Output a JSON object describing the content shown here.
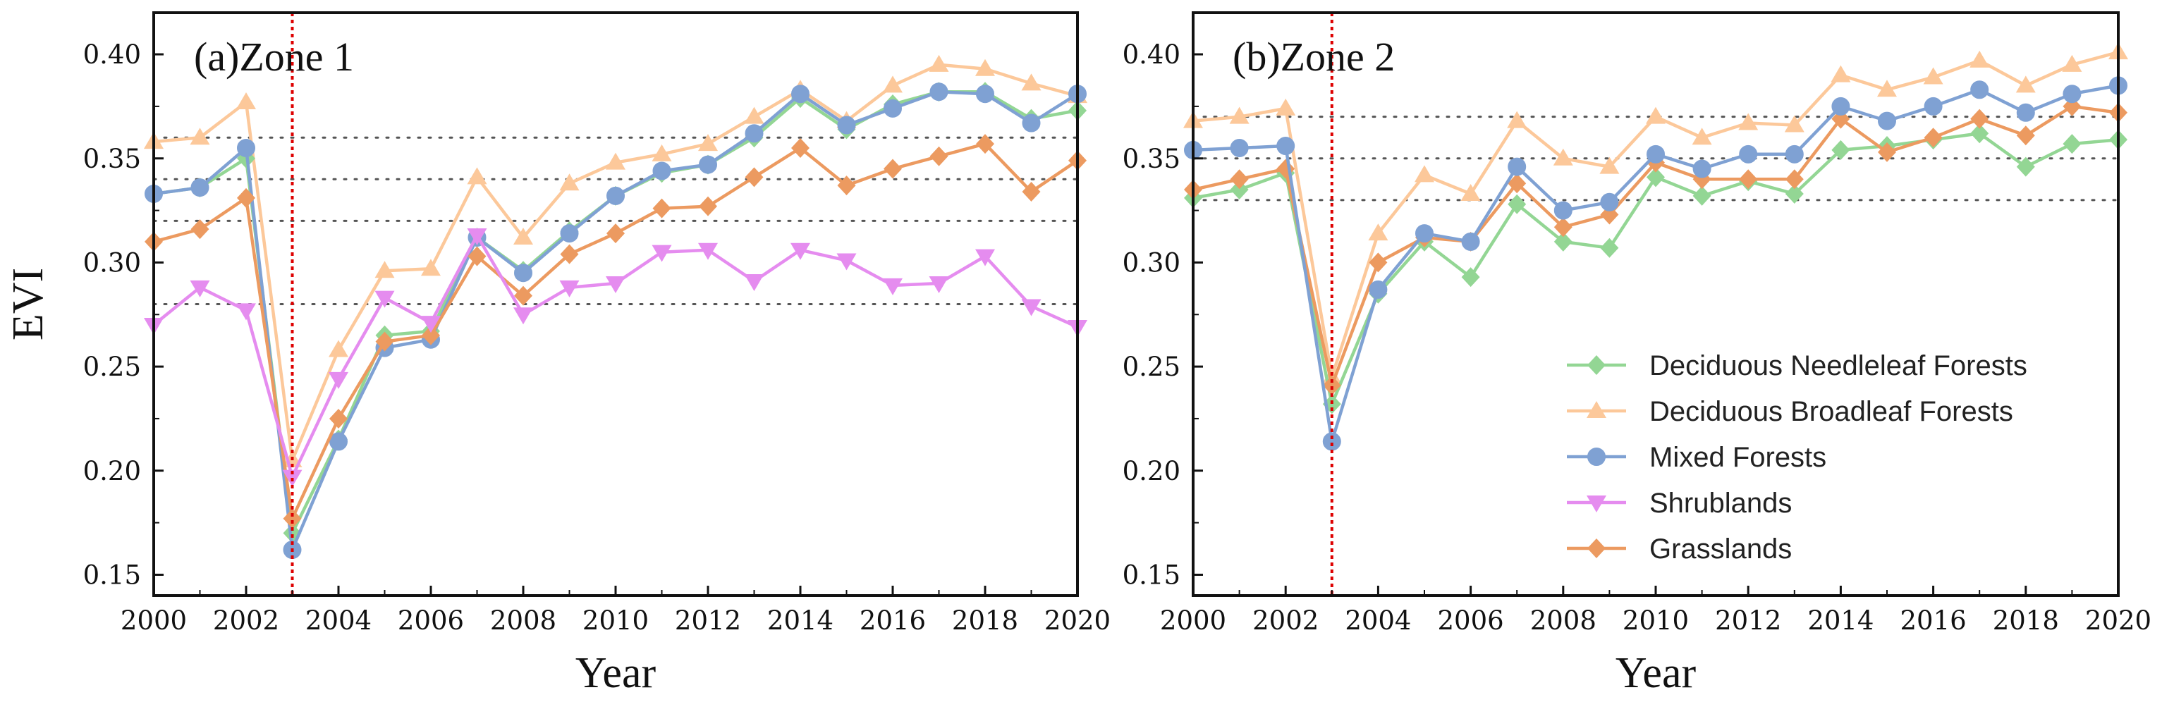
{
  "chart_data": [
    {
      "type": "line",
      "title": "(a)Zone 1",
      "xlabel": "Year",
      "ylabel": "EVI",
      "x": [
        2000,
        2001,
        2002,
        2003,
        2004,
        2005,
        2006,
        2007,
        2008,
        2009,
        2010,
        2011,
        2012,
        2013,
        2014,
        2015,
        2016,
        2017,
        2018,
        2019,
        2020
      ],
      "xticks": [
        "2000",
        "2002",
        "2004",
        "2006",
        "2008",
        "2010",
        "2012",
        "2014",
        "2016",
        "2018",
        "2020"
      ],
      "yticks": [
        "0.15",
        "0.20",
        "0.25",
        "0.30",
        "0.35",
        "0.40"
      ],
      "xlim": [
        2000,
        2020
      ],
      "ylim": [
        0.14,
        0.42
      ],
      "reference_lines_y": [
        0.36,
        0.34,
        0.32,
        0.28
      ],
      "event_line_x": 2003,
      "series": [
        {
          "name": "Deciduous Broadleaf Forests",
          "values": [
            0.358,
            0.36,
            0.377,
            0.205,
            0.258,
            0.296,
            0.297,
            0.341,
            0.312,
            0.338,
            0.348,
            0.352,
            0.357,
            0.37,
            0.383,
            0.368,
            0.385,
            0.395,
            0.393,
            0.386,
            0.38
          ]
        },
        {
          "name": "Deciduous Needleleaf Forests",
          "values": [
            0.333,
            0.336,
            0.35,
            0.17,
            0.215,
            0.265,
            0.267,
            0.312,
            0.296,
            0.315,
            0.332,
            0.343,
            0.347,
            0.36,
            0.379,
            0.364,
            0.376,
            0.382,
            0.382,
            0.369,
            0.373
          ]
        },
        {
          "name": "Mixed Forests",
          "values": [
            0.333,
            0.336,
            0.355,
            0.162,
            0.214,
            0.259,
            0.263,
            0.312,
            0.295,
            0.314,
            0.332,
            0.344,
            0.347,
            0.362,
            0.381,
            0.366,
            0.374,
            0.382,
            0.381,
            0.367,
            0.381
          ]
        },
        {
          "name": "Grasslands",
          "values": [
            0.31,
            0.316,
            0.331,
            0.177,
            0.225,
            0.262,
            0.265,
            0.303,
            0.284,
            0.304,
            0.314,
            0.326,
            0.327,
            0.341,
            0.355,
            0.337,
            0.345,
            0.351,
            0.357,
            0.334,
            0.349
          ]
        },
        {
          "name": "Shrublands",
          "values": [
            0.27,
            0.288,
            0.277,
            0.197,
            0.244,
            0.283,
            0.271,
            0.313,
            0.275,
            0.288,
            0.29,
            0.305,
            0.306,
            0.291,
            0.306,
            0.301,
            0.289,
            0.29,
            0.303,
            0.279,
            0.269
          ]
        }
      ]
    },
    {
      "type": "line",
      "title": "(b)Zone 2",
      "xlabel": "Year",
      "ylabel": "",
      "x": [
        2000,
        2001,
        2002,
        2003,
        2004,
        2005,
        2006,
        2007,
        2008,
        2009,
        2010,
        2011,
        2012,
        2013,
        2014,
        2015,
        2016,
        2017,
        2018,
        2019,
        2020
      ],
      "xticks": [
        "2000",
        "2002",
        "2004",
        "2006",
        "2008",
        "2010",
        "2012",
        "2014",
        "2016",
        "2018",
        "2020"
      ],
      "yticks": [
        "0.15",
        "0.20",
        "0.25",
        "0.30",
        "0.35",
        "0.40"
      ],
      "xlim": [
        2000,
        2020
      ],
      "ylim": [
        0.14,
        0.42
      ],
      "reference_lines_y": [
        0.37,
        0.35,
        0.33
      ],
      "event_line_x": 2003,
      "series": [
        {
          "name": "Deciduous Broadleaf Forests",
          "values": [
            0.368,
            0.37,
            0.374,
            0.245,
            0.314,
            0.342,
            0.333,
            0.368,
            0.35,
            0.346,
            0.37,
            0.36,
            0.367,
            0.366,
            0.39,
            0.383,
            0.389,
            0.397,
            0.385,
            0.395,
            0.401
          ]
        },
        {
          "name": "Deciduous Needleleaf Forests",
          "values": [
            0.331,
            0.335,
            0.343,
            0.232,
            0.285,
            0.31,
            0.293,
            0.328,
            0.31,
            0.307,
            0.341,
            0.332,
            0.339,
            0.333,
            0.354,
            0.356,
            0.359,
            0.362,
            0.346,
            0.357,
            0.359
          ]
        },
        {
          "name": "Grasslands",
          "values": [
            0.335,
            0.34,
            0.345,
            0.241,
            0.3,
            0.312,
            0.31,
            0.338,
            0.317,
            0.323,
            0.348,
            0.34,
            0.34,
            0.34,
            0.369,
            0.353,
            0.36,
            0.369,
            0.361,
            0.375,
            0.372
          ]
        },
        {
          "name": "Mixed Forests",
          "values": [
            0.354,
            0.355,
            0.356,
            0.214,
            0.287,
            0.314,
            0.31,
            0.346,
            0.325,
            0.329,
            0.352,
            0.345,
            0.352,
            0.352,
            0.375,
            0.368,
            0.375,
            0.383,
            0.372,
            0.381,
            0.385
          ]
        }
      ]
    }
  ],
  "legend": {
    "placement": "bottom-right of panel (b)",
    "items": [
      {
        "name": "Deciduous Needleleaf Forests",
        "marker": "diamond",
        "color": "#93d694"
      },
      {
        "name": "Deciduous Broadleaf Forests",
        "marker": "triangle-up",
        "color": "#fcc89a"
      },
      {
        "name": "Mixed Forests",
        "marker": "circle",
        "color": "#7fa1d3"
      },
      {
        "name": "Shrublands",
        "marker": "triangle-down",
        "color": "#e58cef"
      },
      {
        "name": "Grasslands",
        "marker": "diamond",
        "color": "#ec9a60"
      }
    ]
  },
  "colors": {
    "Deciduous Needleleaf Forests": "#93d694",
    "Deciduous Broadleaf Forests": "#fcc89a",
    "Mixed Forests": "#7fa1d3",
    "Shrublands": "#e58cef",
    "Grasslands": "#ec9a60",
    "reference_line": "#555555",
    "event_line": "#dd0000"
  }
}
